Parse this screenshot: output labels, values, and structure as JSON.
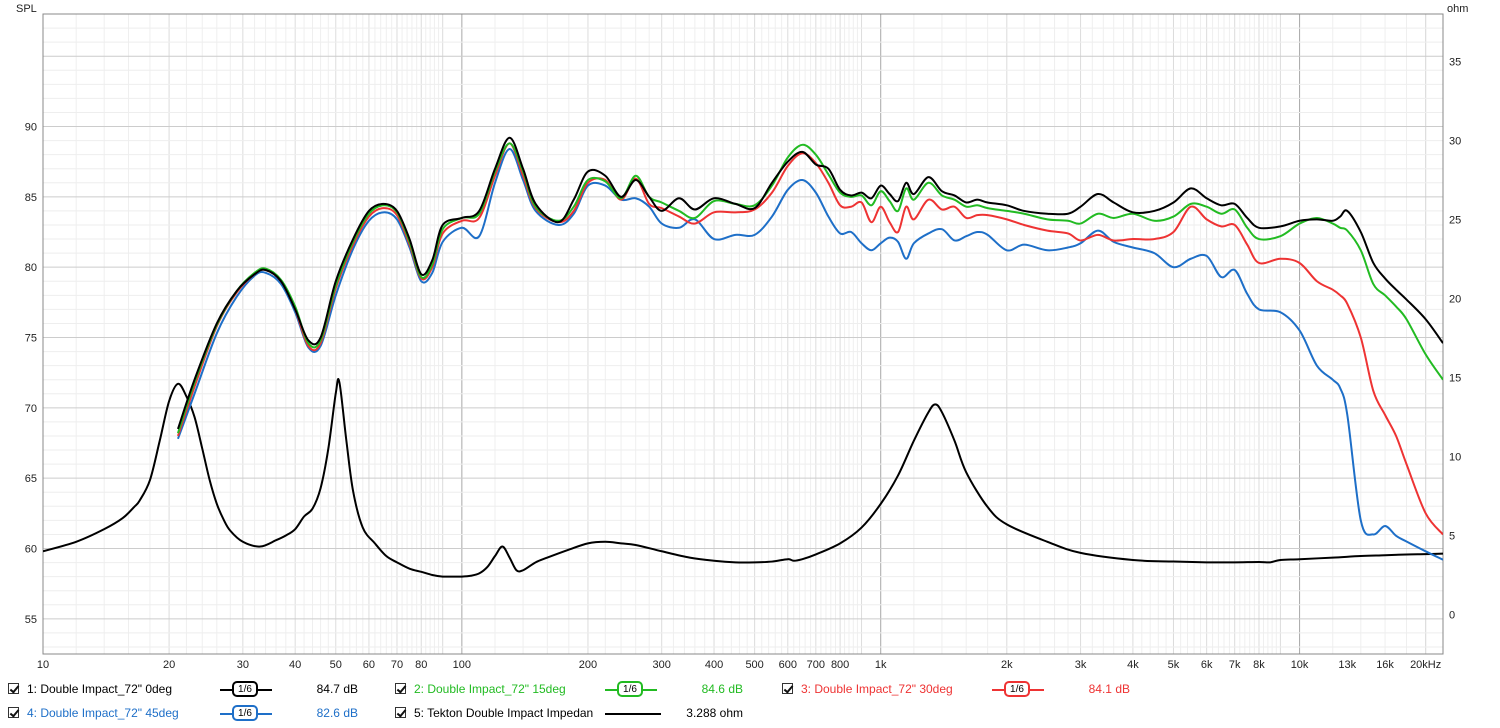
{
  "chart_data": {
    "type": "line",
    "title": "",
    "xlabel": "",
    "ylabel": "SPL",
    "y2label": "ohm",
    "x_scale": "log",
    "xlim": [
      10,
      22000
    ],
    "ylim": [
      52.5,
      98
    ],
    "y2lim": [
      -2.5,
      38
    ],
    "x_ticks": [
      {
        "v": 10,
        "label": "10"
      },
      {
        "v": 20,
        "label": "20"
      },
      {
        "v": 30,
        "label": "30"
      },
      {
        "v": 40,
        "label": "40"
      },
      {
        "v": 50,
        "label": "50"
      },
      {
        "v": 60,
        "label": "60"
      },
      {
        "v": 70,
        "label": "70"
      },
      {
        "v": 80,
        "label": "80"
      },
      {
        "v": 100,
        "label": "100"
      },
      {
        "v": 200,
        "label": "200"
      },
      {
        "v": 300,
        "label": "300"
      },
      {
        "v": 400,
        "label": "400"
      },
      {
        "v": 500,
        "label": "500"
      },
      {
        "v": 600,
        "label": "600"
      },
      {
        "v": 700,
        "label": "700"
      },
      {
        "v": 800,
        "label": "800"
      },
      {
        "v": 1000,
        "label": "1k"
      },
      {
        "v": 2000,
        "label": "2k"
      },
      {
        "v": 3000,
        "label": "3k"
      },
      {
        "v": 4000,
        "label": "4k"
      },
      {
        "v": 5000,
        "label": "5k"
      },
      {
        "v": 6000,
        "label": "6k"
      },
      {
        "v": 7000,
        "label": "7k"
      },
      {
        "v": 8000,
        "label": "8k"
      },
      {
        "v": 10000,
        "label": "10k"
      },
      {
        "v": 13000,
        "label": "13k"
      },
      {
        "v": 16000,
        "label": "16k"
      },
      {
        "v": 20000,
        "label": "20kHz"
      }
    ],
    "y_ticks": [
      55,
      60,
      65,
      70,
      75,
      80,
      85,
      90
    ],
    "y2_ticks": [
      0,
      5,
      10,
      15,
      20,
      25,
      30,
      35
    ],
    "grid": true,
    "series": [
      {
        "name": "1: Double Impact_72\" 0deg",
        "axis": "left",
        "color": "#000000",
        "x": [
          21,
          23,
          26,
          29,
          32,
          34,
          37,
          40,
          43,
          46,
          50,
          55,
          60,
          65,
          70,
          75,
          80,
          85,
          90,
          100,
          110,
          120,
          130,
          140,
          150,
          170,
          185,
          200,
          220,
          240,
          260,
          280,
          300,
          330,
          360,
          400,
          450,
          500,
          550,
          600,
          650,
          700,
          750,
          800,
          850,
          900,
          950,
          1000,
          1050,
          1100,
          1150,
          1200,
          1300,
          1400,
          1500,
          1600,
          1700,
          1800,
          2000,
          2200,
          2500,
          2800,
          3000,
          3300,
          3600,
          4000,
          4500,
          5000,
          5500,
          6000,
          6500,
          7000,
          7500,
          8000,
          9000,
          10000,
          11000,
          12000,
          12500,
          13000,
          14000,
          15000,
          16000,
          17000,
          18000,
          20000,
          22000
        ],
        "y": [
          68.5,
          72,
          76,
          78.3,
          79.5,
          79.8,
          79,
          77,
          74.8,
          75,
          79,
          82,
          84,
          84.5,
          84,
          82,
          79.5,
          80.5,
          83,
          83.5,
          84,
          87,
          89.2,
          87,
          84.5,
          83.2,
          84.8,
          86.8,
          86.5,
          85,
          86.2,
          85,
          84,
          84.9,
          84.1,
          84.9,
          84.5,
          84.2,
          86,
          87.5,
          88.2,
          87.3,
          87,
          85.5,
          85.1,
          85.3,
          84.9,
          85.8,
          85.2,
          84.7,
          86,
          85.2,
          86.4,
          85.4,
          85.1,
          84.6,
          84.8,
          84.6,
          84.4,
          84,
          83.8,
          83.8,
          84.3,
          85.2,
          84.6,
          83.9,
          84,
          84.6,
          85.6,
          84.9,
          84.4,
          84.5,
          83.5,
          82.8,
          82.9,
          83.3,
          83.4,
          83.3,
          83.6,
          84,
          82.5,
          80.3,
          79.2,
          78.4,
          77.7,
          76.3,
          74.6
        ]
      },
      {
        "name": "2: Double Impact_72\" 15deg",
        "axis": "left",
        "color": "#22bb22",
        "x": [
          21,
          23,
          26,
          29,
          32,
          34,
          37,
          40,
          43,
          46,
          50,
          55,
          60,
          65,
          70,
          75,
          80,
          85,
          90,
          100,
          110,
          120,
          130,
          140,
          150,
          170,
          185,
          200,
          220,
          240,
          260,
          280,
          300,
          330,
          360,
          400,
          450,
          500,
          550,
          600,
          650,
          700,
          750,
          800,
          850,
          900,
          950,
          1000,
          1050,
          1100,
          1150,
          1200,
          1300,
          1400,
          1500,
          1600,
          1700,
          1800,
          2000,
          2200,
          2500,
          2800,
          3000,
          3300,
          3600,
          4000,
          4500,
          5000,
          5500,
          6000,
          6500,
          7000,
          7500,
          8000,
          9000,
          10000,
          11000,
          12000,
          12500,
          13000,
          14000,
          15000,
          16000,
          17000,
          18000,
          20000,
          22000
        ],
        "y": [
          68.2,
          71.8,
          75.9,
          78.3,
          79.6,
          79.9,
          79.1,
          77.2,
          74.6,
          74.8,
          78.7,
          81.8,
          83.8,
          84.4,
          83.9,
          81.8,
          79.3,
          80.2,
          82.7,
          83.5,
          83.8,
          86.8,
          88.8,
          86.8,
          84.3,
          83.3,
          84.3,
          86.2,
          86.1,
          84.9,
          86.5,
          85,
          84.6,
          84,
          83.5,
          84.7,
          84.5,
          84.4,
          85.8,
          87.8,
          88.7,
          88,
          86.6,
          85.3,
          85,
          85.1,
          84.4,
          85.4,
          84.7,
          84,
          85.6,
          84.8,
          86,
          85.1,
          84.8,
          84.3,
          84.4,
          84.2,
          84,
          83.8,
          83.4,
          83.3,
          83.1,
          83.8,
          83.5,
          83.8,
          83.3,
          83.6,
          84.5,
          84.3,
          83.8,
          84.1,
          82.8,
          82,
          82.2,
          83.1,
          83.5,
          83.1,
          82.8,
          82.6,
          81.2,
          78.8,
          78,
          77.2,
          76.3,
          73.8,
          72
        ]
      },
      {
        "name": "3: Double Impact_72\" 30deg",
        "axis": "left",
        "color": "#ee3333",
        "x": [
          21,
          23,
          26,
          29,
          32,
          34,
          37,
          40,
          43,
          46,
          50,
          55,
          60,
          65,
          70,
          75,
          80,
          85,
          90,
          100,
          110,
          120,
          130,
          140,
          150,
          170,
          185,
          200,
          220,
          240,
          260,
          280,
          300,
          330,
          360,
          400,
          450,
          500,
          550,
          600,
          650,
          700,
          750,
          800,
          850,
          900,
          950,
          1000,
          1050,
          1100,
          1150,
          1200,
          1300,
          1400,
          1500,
          1600,
          1700,
          1800,
          2000,
          2200,
          2500,
          2800,
          3000,
          3300,
          3600,
          4000,
          4500,
          5000,
          5500,
          6000,
          6500,
          7000,
          7500,
          8000,
          9000,
          10000,
          11000,
          12000,
          12500,
          13000,
          14000,
          15000,
          16000,
          17000,
          18000,
          20000,
          22000
        ],
        "y": [
          68,
          71.5,
          75.8,
          78.2,
          79.5,
          79.8,
          79,
          77,
          74.4,
          74.6,
          78.5,
          81.6,
          83.6,
          84.2,
          83.7,
          81.6,
          79.2,
          80,
          82.4,
          83.3,
          83.5,
          86.5,
          88.8,
          86.5,
          84.2,
          83.2,
          84,
          86,
          86.2,
          84.8,
          86.3,
          84.5,
          84.2,
          83.6,
          83.1,
          83.9,
          83.9,
          84.1,
          85.3,
          87.2,
          88.1,
          87.4,
          86,
          84.4,
          84.3,
          84.6,
          83.2,
          84.3,
          83.2,
          82.5,
          84.3,
          83.4,
          84.8,
          84.1,
          84.3,
          83.5,
          83.7,
          83.7,
          83.4,
          83,
          82.6,
          82.4,
          81.9,
          82.3,
          81.9,
          82,
          82,
          82.5,
          84.3,
          83.4,
          82.9,
          83,
          81.6,
          80.3,
          80.6,
          80.3,
          79,
          78.4,
          78,
          77.4,
          75,
          71.2,
          69.5,
          68,
          66,
          62.5,
          61
        ]
      },
      {
        "name": "4: Double Impact_72\" 45deg",
        "axis": "left",
        "color": "#1e6fc8",
        "x": [
          21,
          23,
          26,
          29,
          32,
          34,
          37,
          40,
          43,
          46,
          50,
          55,
          60,
          65,
          70,
          75,
          80,
          85,
          90,
          100,
          110,
          120,
          130,
          140,
          150,
          170,
          185,
          200,
          220,
          240,
          260,
          280,
          300,
          330,
          360,
          400,
          450,
          500,
          550,
          600,
          650,
          700,
          750,
          800,
          850,
          900,
          950,
          1000,
          1050,
          1100,
          1150,
          1200,
          1300,
          1400,
          1500,
          1600,
          1700,
          1800,
          2000,
          2200,
          2500,
          2800,
          3000,
          3300,
          3600,
          4000,
          4500,
          5000,
          5500,
          6000,
          6500,
          7000,
          7500,
          8000,
          9000,
          10000,
          11000,
          12000,
          12500,
          13000,
          14000,
          15000,
          16000,
          17000,
          18000,
          20000,
          22000
        ],
        "y": [
          67.8,
          71,
          75.3,
          77.9,
          79.4,
          79.6,
          78.8,
          76.8,
          74.3,
          74.4,
          78,
          81.3,
          83.3,
          83.9,
          83.4,
          81.4,
          79,
          79.6,
          81.8,
          82.8,
          82.2,
          86,
          88.4,
          86.2,
          84,
          83,
          83.8,
          85.8,
          85.8,
          84.8,
          84.9,
          84.3,
          83.1,
          82.8,
          83.4,
          82,
          82.3,
          82.3,
          83.6,
          85.5,
          86.2,
          85.3,
          83.6,
          82.4,
          82.5,
          81.7,
          81.2,
          81.7,
          82.1,
          81.8,
          80.6,
          81.7,
          82.4,
          82.7,
          81.9,
          82.2,
          82.5,
          82.3,
          81.2,
          81.6,
          81.2,
          81.4,
          81.7,
          82.6,
          81.8,
          81.4,
          81,
          80,
          80.6,
          80.8,
          79.3,
          79.8,
          78.1,
          77,
          76.8,
          75.5,
          73,
          72,
          71.4,
          69.5,
          62,
          61,
          61.6,
          60.9,
          60.5,
          59.8,
          59.2
        ]
      },
      {
        "name": "5: Tekton Double Impact Impedan",
        "axis": "right",
        "color": "#000000",
        "x": [
          10,
          12,
          14,
          15.5,
          16.5,
          17,
          18,
          19,
          20,
          21,
          22,
          23,
          24,
          25,
          26,
          27,
          28,
          30,
          33,
          36,
          38,
          40,
          42,
          44,
          46,
          48,
          50,
          51,
          53,
          55,
          58,
          62,
          66,
          70,
          75,
          80,
          85,
          90,
          95,
          100,
          105,
          110,
          115,
          120,
          125,
          130,
          135,
          140,
          150,
          160,
          180,
          200,
          220,
          240,
          260,
          300,
          350,
          400,
          450,
          500,
          550,
          600,
          620,
          650,
          700,
          800,
          900,
          1000,
          1100,
          1200,
          1300,
          1350,
          1400,
          1500,
          1600,
          1800,
          2000,
          2500,
          3000,
          4000,
          5000,
          6000,
          7000,
          8000,
          8500,
          9000,
          10000,
          12000,
          14000,
          16000,
          18000,
          20000,
          22000
        ],
        "y": [
          4,
          4.6,
          5.4,
          6.1,
          6.8,
          7.2,
          8.5,
          11,
          13.5,
          14.6,
          13.8,
          12.5,
          10.5,
          8.5,
          7,
          6,
          5.3,
          4.6,
          4.3,
          4.7,
          5,
          5.4,
          6.2,
          6.7,
          8,
          10.5,
          14,
          14.7,
          11,
          7.8,
          5.5,
          4.5,
          3.7,
          3.3,
          2.9,
          2.7,
          2.5,
          2.4,
          2.4,
          2.4,
          2.45,
          2.6,
          3,
          3.7,
          4.3,
          3.6,
          2.8,
          2.8,
          3.3,
          3.6,
          4.1,
          4.5,
          4.6,
          4.5,
          4.4,
          4,
          3.6,
          3.4,
          3.3,
          3.3,
          3.35,
          3.5,
          3.4,
          3.5,
          3.8,
          4.5,
          5.5,
          7,
          8.8,
          11,
          12.8,
          13.3,
          12.8,
          11,
          9,
          6.8,
          5.7,
          4.6,
          3.9,
          3.45,
          3.35,
          3.3,
          3.3,
          3.32,
          3.3,
          3.45,
          3.5,
          3.6,
          3.7,
          3.75,
          3.8,
          3.82,
          3.85
        ]
      }
    ]
  },
  "legend": [
    {
      "name": "1: Double Impact_72\" 0deg",
      "smoothing": "1/6",
      "value": "84.7 dB",
      "color": "#000000",
      "text_color": "#000000"
    },
    {
      "name": "2: Double Impact_72\" 15deg",
      "smoothing": "1/6",
      "value": "84.6 dB",
      "color": "#22bb22",
      "text_color": "#22bb22"
    },
    {
      "name": "3: Double Impact_72\" 30deg",
      "smoothing": "1/6",
      "value": "84.1 dB",
      "color": "#ee3333",
      "text_color": "#ee3333"
    },
    {
      "name": "4: Double Impact_72\" 45deg",
      "smoothing": "1/6",
      "value": "82.6 dB",
      "color": "#1e6fc8",
      "text_color": "#1e6fc8"
    },
    {
      "name": "5: Tekton Double Impact Impedan",
      "smoothing": "",
      "value": "3.288 ohm",
      "color": "#000000",
      "text_color": "#000000"
    }
  ]
}
